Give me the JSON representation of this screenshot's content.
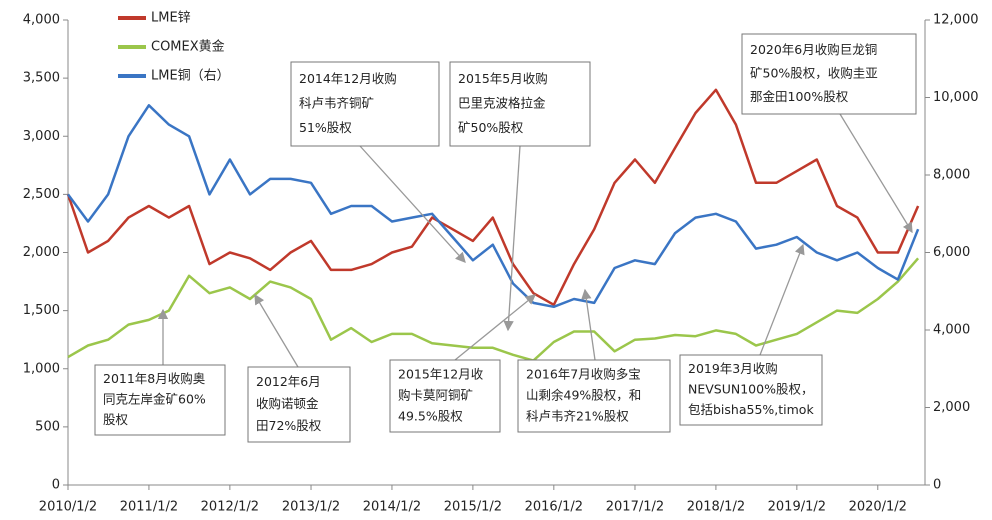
{
  "chart_data": {
    "type": "line",
    "x": [
      "2010/1/2",
      "2010/4/2",
      "2010/7/2",
      "2010/10/2",
      "2011/1/2",
      "2011/4/2",
      "2011/7/2",
      "2011/10/2",
      "2012/1/2",
      "2012/4/2",
      "2012/7/2",
      "2012/10/2",
      "2013/1/2",
      "2013/4/2",
      "2013/7/2",
      "2013/10/2",
      "2014/1/2",
      "2014/4/2",
      "2014/7/2",
      "2014/10/2",
      "2015/1/2",
      "2015/4/2",
      "2015/7/2",
      "2015/10/2",
      "2016/1/2",
      "2016/4/2",
      "2016/7/2",
      "2016/10/2",
      "2017/1/2",
      "2017/4/2",
      "2017/7/2",
      "2017/10/2",
      "2018/1/2",
      "2018/4/2",
      "2018/7/2",
      "2018/10/2",
      "2019/1/2",
      "2019/4/2",
      "2019/7/2",
      "2019/10/2",
      "2020/1/2",
      "2020/4/2",
      "2020/7/2"
    ],
    "xlim": [
      "2010/1/2",
      "2020/8/2"
    ],
    "xticks": [
      "2010/1/2",
      "2011/1/2",
      "2012/1/2",
      "2013/1/2",
      "2014/1/2",
      "2015/1/2",
      "2016/1/2",
      "2017/1/2",
      "2018/1/2",
      "2019/1/2",
      "2020/1/2"
    ],
    "ylim": [
      0,
      4000
    ],
    "yticks": [
      0,
      500,
      {
        "value": 1000,
        "label": "1,000"
      },
      {
        "value": 1500,
        "label": "1,500"
      },
      {
        "value": 2000,
        "label": "2,000"
      },
      {
        "value": 2500,
        "label": "2,500"
      },
      {
        "value": 3000,
        "label": "3,000"
      },
      {
        "value": 3500,
        "label": "3,500"
      },
      {
        "value": 4000,
        "label": "4,000"
      }
    ],
    "y2lim": [
      0,
      12000
    ],
    "y2ticks": [
      0,
      {
        "value": 2000,
        "label": "2,000"
      },
      {
        "value": 4000,
        "label": "4,000"
      },
      {
        "value": 6000,
        "label": "6,000"
      },
      {
        "value": 8000,
        "label": "8,000"
      },
      {
        "value": 10000,
        "label": "10,000"
      },
      {
        "value": 12000,
        "label": "12,000"
      }
    ],
    "series": [
      {
        "name": "LME锌",
        "color": "#c0392b",
        "values": [
          2500,
          2000,
          2100,
          2300,
          2400,
          2300,
          2400,
          1900,
          2000,
          1950,
          1850,
          2000,
          2100,
          1850,
          1850,
          1900,
          2000,
          2050,
          2300,
          2200,
          2100,
          2300,
          1900,
          1650,
          1550,
          1900,
          2200,
          2600,
          2800,
          2600,
          2900,
          3200,
          3400,
          3100,
          2600,
          2600,
          2700,
          2800,
          2400,
          2300,
          2000,
          2000,
          2400
        ]
      },
      {
        "name": "COMEX黄金",
        "color": "#9bc64b",
        "values": [
          1100,
          1200,
          1250,
          1380,
          1420,
          1500,
          1800,
          1650,
          1700,
          1600,
          1750,
          1700,
          1600,
          1250,
          1350,
          1230,
          1300,
          1300,
          1220,
          1200,
          1180,
          1180,
          1120,
          1070,
          1230,
          1320,
          1320,
          1150,
          1250,
          1260,
          1290,
          1280,
          1330,
          1300,
          1200,
          1250,
          1300,
          1400,
          1500,
          1480,
          1600,
          1750,
          1950
        ]
      },
      {
        "name": "LME铜（右）",
        "color": "#3a75c4",
        "axis": "y2",
        "values": [
          7500,
          6800,
          7500,
          9000,
          9800,
          9300,
          9000,
          7500,
          8400,
          7500,
          7900,
          7900,
          7800,
          7000,
          7200,
          7200,
          6800,
          6900,
          7000,
          6400,
          5800,
          6200,
          5200,
          4700,
          4600,
          4800,
          4700,
          5600,
          5800,
          5700,
          6500,
          6900,
          7000,
          6800,
          6100,
          6200,
          6400,
          6000,
          5800,
          6000,
          5600,
          5300,
          6600
        ]
      }
    ],
    "annotations": [
      [
        "2011年8月收购奥",
        "同克左岸金矿60%",
        "股权"
      ],
      [
        "2012年6月",
        "收购诺顿金",
        "田72%股权"
      ],
      [
        "2014年12月收购",
        "科卢韦齐铜矿",
        "51%股权"
      ],
      [
        "2015年5月收购",
        "巴里克波格拉金",
        "矿50%股权"
      ],
      [
        "2015年12月收",
        "购卡莫阿铜矿",
        "49.5%股权"
      ],
      [
        "2016年7月收购多宝",
        "山剩余49%股权，和",
        "科卢韦齐21%股权"
      ],
      [
        "2019年3月收购",
        "NEVSUN100%股权，",
        "包括bisha55%,timok"
      ],
      [
        "2020年6月收购巨龙铜",
        "矿50%股权，收购圭亚",
        "那金田100%股权"
      ]
    ]
  }
}
